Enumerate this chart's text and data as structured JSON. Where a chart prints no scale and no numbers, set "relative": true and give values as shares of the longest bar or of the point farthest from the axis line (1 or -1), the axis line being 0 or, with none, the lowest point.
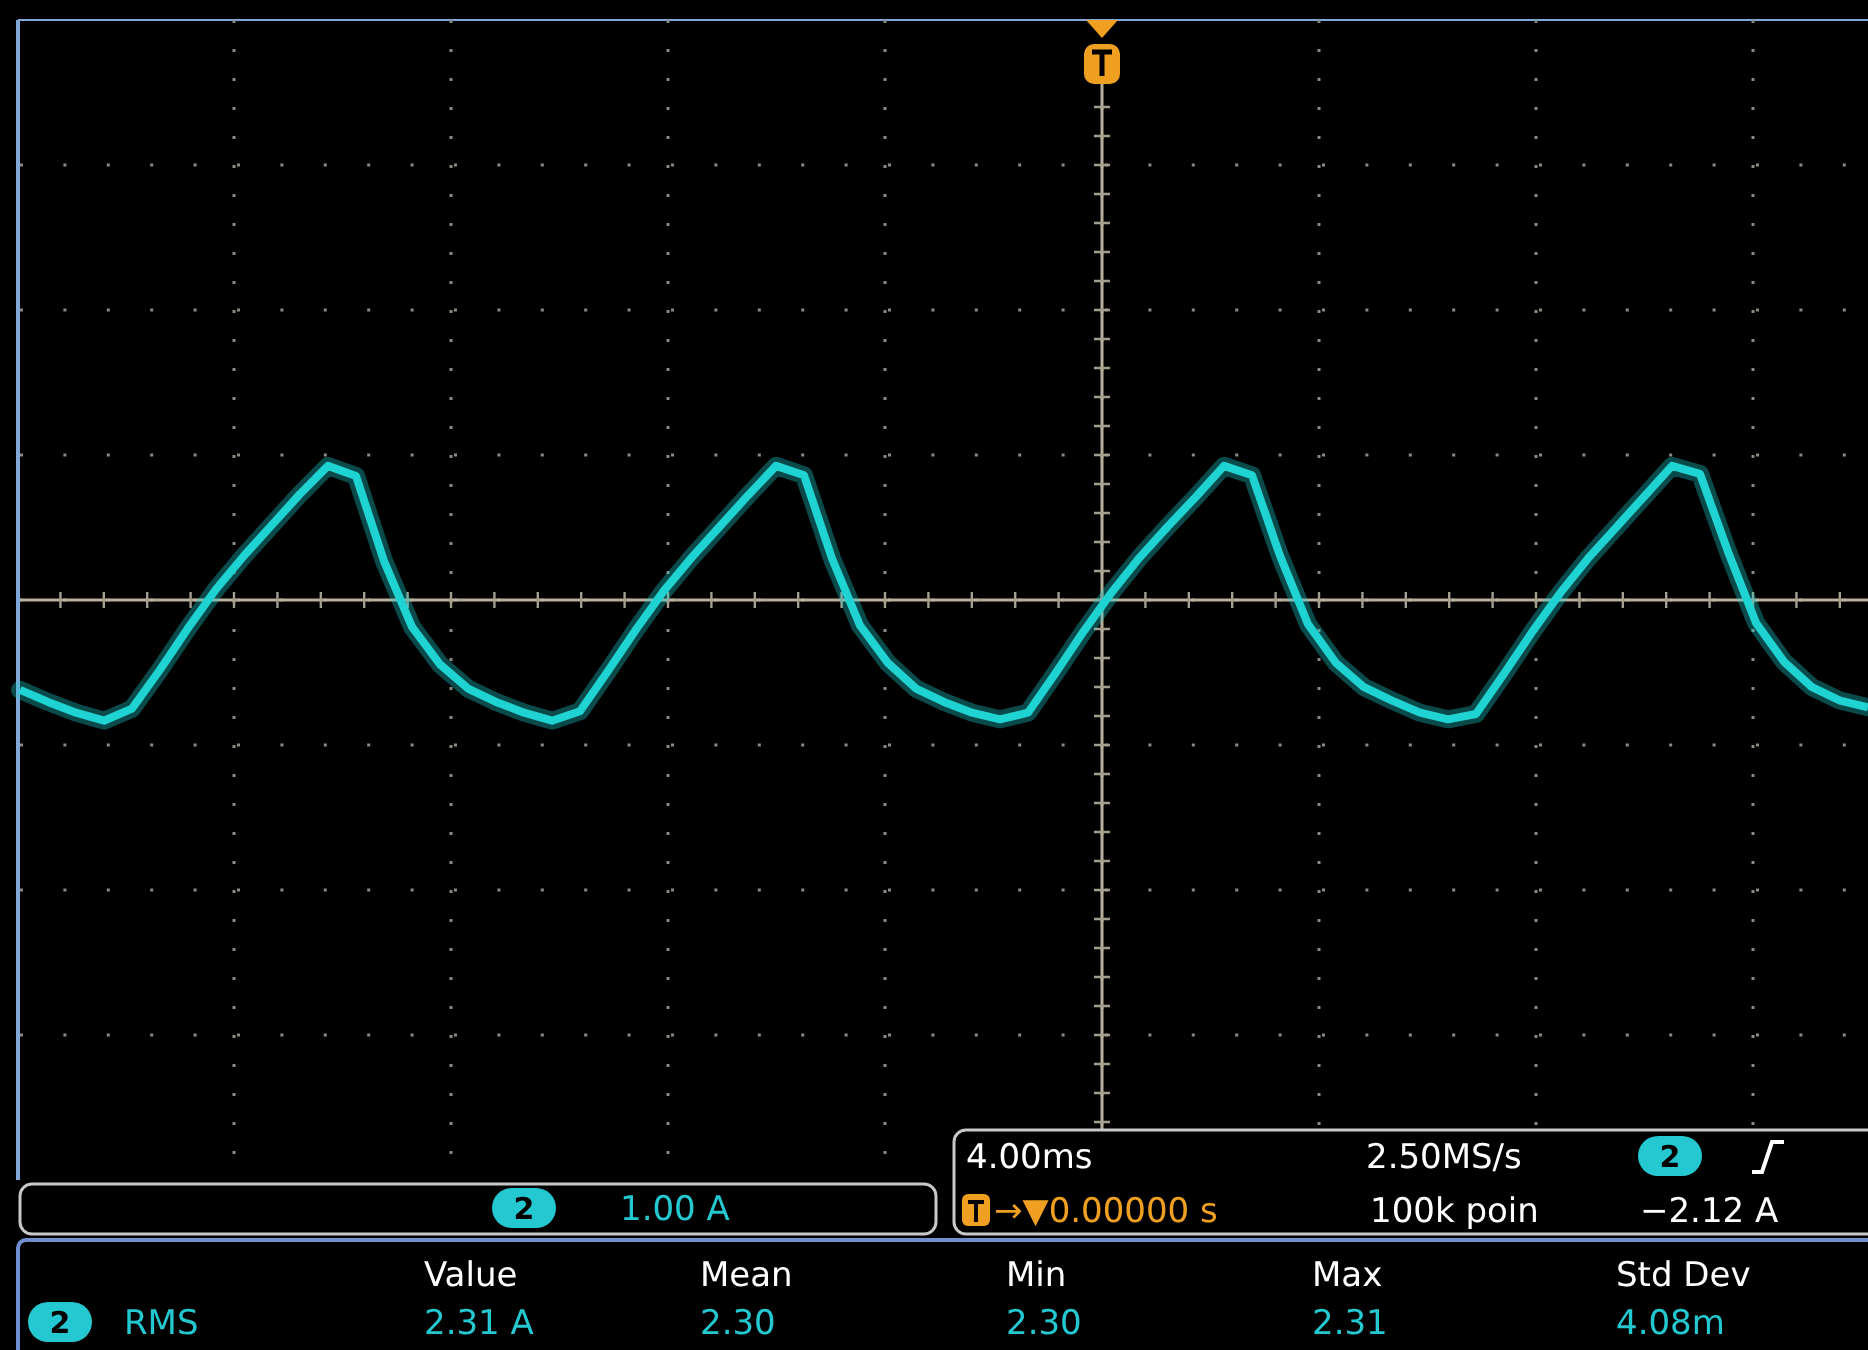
{
  "chart_data": {
    "type": "line",
    "relative": true,
    "grid": true,
    "marker": "none",
    "line_style": "solid",
    "categories": [
      null,
      null,
      null,
      null,
      null,
      null,
      null,
      null,
      null,
      null,
      null,
      null,
      null,
      null,
      null,
      null,
      null,
      null,
      null,
      null,
      null,
      null,
      null,
      null,
      null,
      null,
      null,
      null,
      null,
      null,
      null,
      null,
      null,
      null,
      null,
      null,
      null,
      null,
      null,
      null,
      null,
      null,
      null,
      null,
      null,
      null,
      null,
      null,
      null,
      null,
      null,
      null,
      null,
      null,
      null,
      null,
      null,
      null,
      null,
      null,
      null,
      null,
      null,
      null,
      null,
      null,
      null
    ],
    "series": [
      {
        "color": "#1fd3d3",
        "values": [
          -0.67,
          -0.76,
          -0.84,
          -0.9,
          -0.81,
          -0.52,
          -0.21,
          0.08,
          0.33,
          0.56,
          0.79,
          1,
          0.925,
          0.29,
          -0.2,
          -0.48,
          -0.66,
          -0.76,
          -0.84,
          -0.9,
          -0.83,
          -0.53,
          -0.22,
          0.07,
          0.32,
          0.55,
          0.78,
          1,
          0.93,
          0.31,
          -0.19,
          -0.47,
          -0.66,
          -0.76,
          -0.84,
          -0.89,
          -0.84,
          -0.54,
          -0.23,
          0.06,
          0.32,
          0.55,
          0.77,
          1,
          0.93,
          0.33,
          -0.18,
          -0.47,
          -0.65,
          -0.75,
          -0.84,
          -0.89,
          -0.85,
          -0.55,
          -0.24,
          0.05,
          0.31,
          0.54,
          0.77,
          1,
          0.94,
          0.36,
          -0.17,
          -0.46,
          -0.65,
          -0.75,
          -0.8
        ]
      }
    ],
    "annotations": [
      "2",
      "1.00 A",
      "4.00ms",
      "→▼0.00000 s",
      "2.50MS/s",
      "2",
      "−2.12 A",
      "100k poin",
      "Value",
      "Mean",
      "Min",
      "Max",
      "Std Dev",
      "2",
      "RMS",
      "2.31 A",
      "2.30",
      "2.30",
      "2.31",
      "4.08m"
    ]
  }
}
